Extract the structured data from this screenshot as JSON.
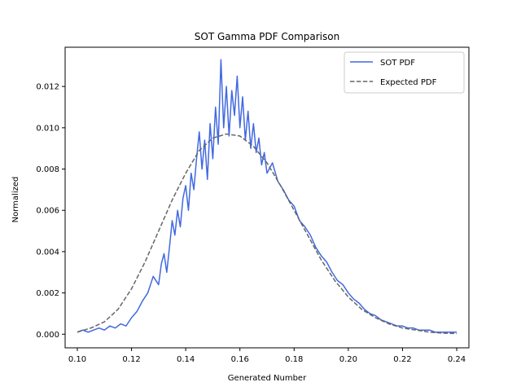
{
  "chart_data": {
    "type": "line",
    "title": "SOT Gamma PDF Comparison",
    "xlabel": "Generated Number",
    "ylabel": "Normalized",
    "xlim": [
      0.0955,
      0.2445
    ],
    "ylim": [
      -0.00066,
      0.0139
    ],
    "x_ticks": [
      0.1,
      0.12,
      0.14,
      0.16,
      0.18,
      0.2,
      0.22,
      0.24
    ],
    "x_tick_labels": [
      "0.10",
      "0.12",
      "0.14",
      "0.16",
      "0.18",
      "0.20",
      "0.22",
      "0.24"
    ],
    "y_ticks": [
      0.0,
      0.002,
      0.004,
      0.006,
      0.008,
      0.01,
      0.012
    ],
    "y_tick_labels": [
      "0.000",
      "0.002",
      "0.004",
      "0.006",
      "0.008",
      "0.010",
      "0.012"
    ],
    "grid": false,
    "legend_position": "upper right",
    "series": [
      {
        "name": "SOT PDF",
        "color": "#4169e1",
        "style": "solid",
        "x": [
          0.1,
          0.102,
          0.104,
          0.106,
          0.108,
          0.11,
          0.112,
          0.114,
          0.116,
          0.118,
          0.12,
          0.122,
          0.124,
          0.126,
          0.128,
          0.13,
          0.131,
          0.132,
          0.133,
          0.134,
          0.135,
          0.136,
          0.137,
          0.138,
          0.139,
          0.14,
          0.141,
          0.142,
          0.143,
          0.144,
          0.145,
          0.146,
          0.147,
          0.148,
          0.149,
          0.15,
          0.151,
          0.152,
          0.153,
          0.154,
          0.155,
          0.156,
          0.157,
          0.158,
          0.159,
          0.16,
          0.161,
          0.162,
          0.163,
          0.164,
          0.165,
          0.166,
          0.167,
          0.168,
          0.169,
          0.17,
          0.172,
          0.174,
          0.176,
          0.178,
          0.18,
          0.182,
          0.184,
          0.186,
          0.188,
          0.19,
          0.192,
          0.194,
          0.196,
          0.198,
          0.2,
          0.202,
          0.204,
          0.206,
          0.208,
          0.21,
          0.212,
          0.214,
          0.216,
          0.218,
          0.22,
          0.222,
          0.224,
          0.226,
          0.228,
          0.23,
          0.232,
          0.234,
          0.236,
          0.238,
          0.24
        ],
        "y": [
          0.0001,
          0.0002,
          0.0001,
          0.0002,
          0.0003,
          0.0002,
          0.0004,
          0.0003,
          0.0005,
          0.0004,
          0.0008,
          0.0011,
          0.0016,
          0.002,
          0.0028,
          0.0024,
          0.0034,
          0.0039,
          0.003,
          0.0042,
          0.0055,
          0.0048,
          0.006,
          0.0052,
          0.0066,
          0.0072,
          0.006,
          0.0078,
          0.007,
          0.0085,
          0.0098,
          0.008,
          0.0094,
          0.0075,
          0.0102,
          0.0085,
          0.011,
          0.0092,
          0.0133,
          0.01,
          0.012,
          0.0096,
          0.0118,
          0.0106,
          0.0125,
          0.01,
          0.0115,
          0.0094,
          0.0108,
          0.009,
          0.0102,
          0.0088,
          0.0095,
          0.0082,
          0.0088,
          0.0078,
          0.0083,
          0.0074,
          0.007,
          0.0065,
          0.0062,
          0.0055,
          0.0052,
          0.0048,
          0.0042,
          0.0038,
          0.0035,
          0.003,
          0.0026,
          0.0024,
          0.002,
          0.0017,
          0.0015,
          0.0012,
          0.001,
          0.0009,
          0.0007,
          0.0006,
          0.0005,
          0.0004,
          0.0004,
          0.0003,
          0.0003,
          0.0002,
          0.0002,
          0.0002,
          0.0001,
          0.0001,
          0.0001,
          0.0001,
          0.0001
        ]
      },
      {
        "name": "Expected PDF",
        "color": "#666666",
        "style": "dashed",
        "x": [
          0.1,
          0.105,
          0.11,
          0.115,
          0.12,
          0.125,
          0.13,
          0.135,
          0.14,
          0.145,
          0.15,
          0.155,
          0.16,
          0.165,
          0.17,
          0.175,
          0.18,
          0.185,
          0.19,
          0.195,
          0.2,
          0.205,
          0.21,
          0.215,
          0.22,
          0.225,
          0.23,
          0.235,
          0.24
        ],
        "y": [
          0.0001,
          0.0003,
          0.0006,
          0.0012,
          0.0022,
          0.0035,
          0.005,
          0.0065,
          0.0078,
          0.0089,
          0.0095,
          0.0097,
          0.0096,
          0.0091,
          0.0083,
          0.0072,
          0.006,
          0.0048,
          0.0036,
          0.0026,
          0.0018,
          0.0012,
          0.0008,
          0.0005,
          0.0003,
          0.0002,
          0.0001,
          5e-05,
          3e-05
        ]
      }
    ]
  }
}
